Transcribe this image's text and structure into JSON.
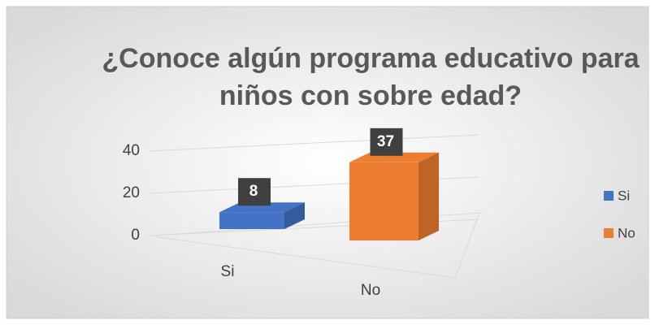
{
  "chart_data": {
    "type": "bar3d",
    "title": [
      "¿Conoce algún programa educativo para",
      "niños con sobre edad?"
    ],
    "categories": [
      "Si",
      "No"
    ],
    "values": [
      8,
      37
    ],
    "colors": [
      "#4472c4",
      "#ed7d31"
    ],
    "ylim": [
      0,
      40
    ],
    "yticks": [
      0,
      20,
      40
    ],
    "grid": true,
    "legend": "right"
  }
}
